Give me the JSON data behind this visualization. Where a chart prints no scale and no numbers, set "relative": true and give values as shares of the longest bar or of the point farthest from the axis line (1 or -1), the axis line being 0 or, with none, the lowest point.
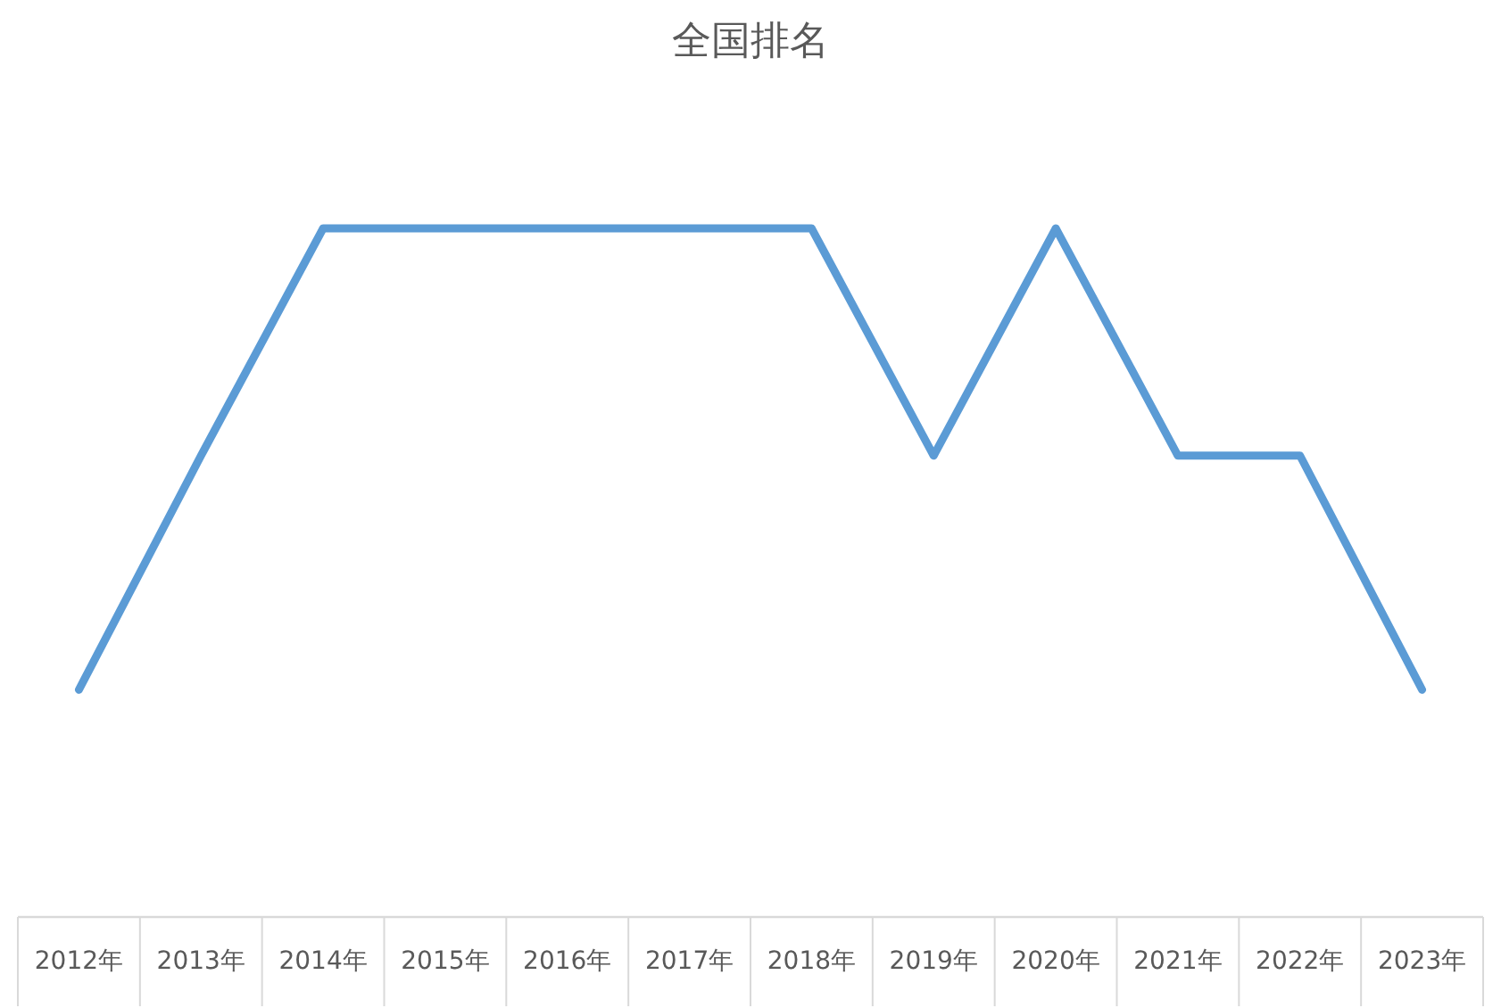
{
  "chart_data": {
    "type": "line",
    "title": "全国排名",
    "relative": true,
    "color": "#5b9bd5",
    "categories": [
      "2012年",
      "2013年",
      "2014年",
      "2015年",
      "2016年",
      "2017年",
      "2018年",
      "2019年",
      "2020年",
      "2021年",
      "2022年",
      "2023年"
    ],
    "values": [
      0.33,
      0.67,
      1,
      1,
      1,
      1,
      1,
      0.67,
      1,
      0.67,
      0.67,
      0.33
    ]
  }
}
